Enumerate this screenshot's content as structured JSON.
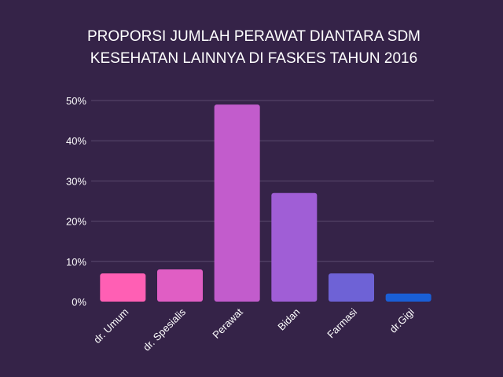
{
  "chart_data": {
    "type": "bar",
    "title_lines": [
      "PROPORSI JUMLAH PERAWAT DIANTARA SDM",
      "KESEHATAN LAINNYA DI FASKES TAHUN 2016"
    ],
    "categories": [
      "dr. Umum",
      "dr. Spesialis",
      "Perawat",
      "Bidan",
      "Farmasi",
      "dr.Gigi"
    ],
    "values": [
      7,
      8,
      49,
      27,
      7,
      2
    ],
    "bar_colors": [
      "#ff5fb4",
      "#e05ec4",
      "#c25ccc",
      "#a05ed6",
      "#6e62d6",
      "#1a5fd6"
    ],
    "yticks": [
      "0%",
      "10%",
      "20%",
      "30%",
      "40%",
      "50%"
    ],
    "ylim": [
      0,
      50
    ],
    "grid": true,
    "legend": "none"
  }
}
